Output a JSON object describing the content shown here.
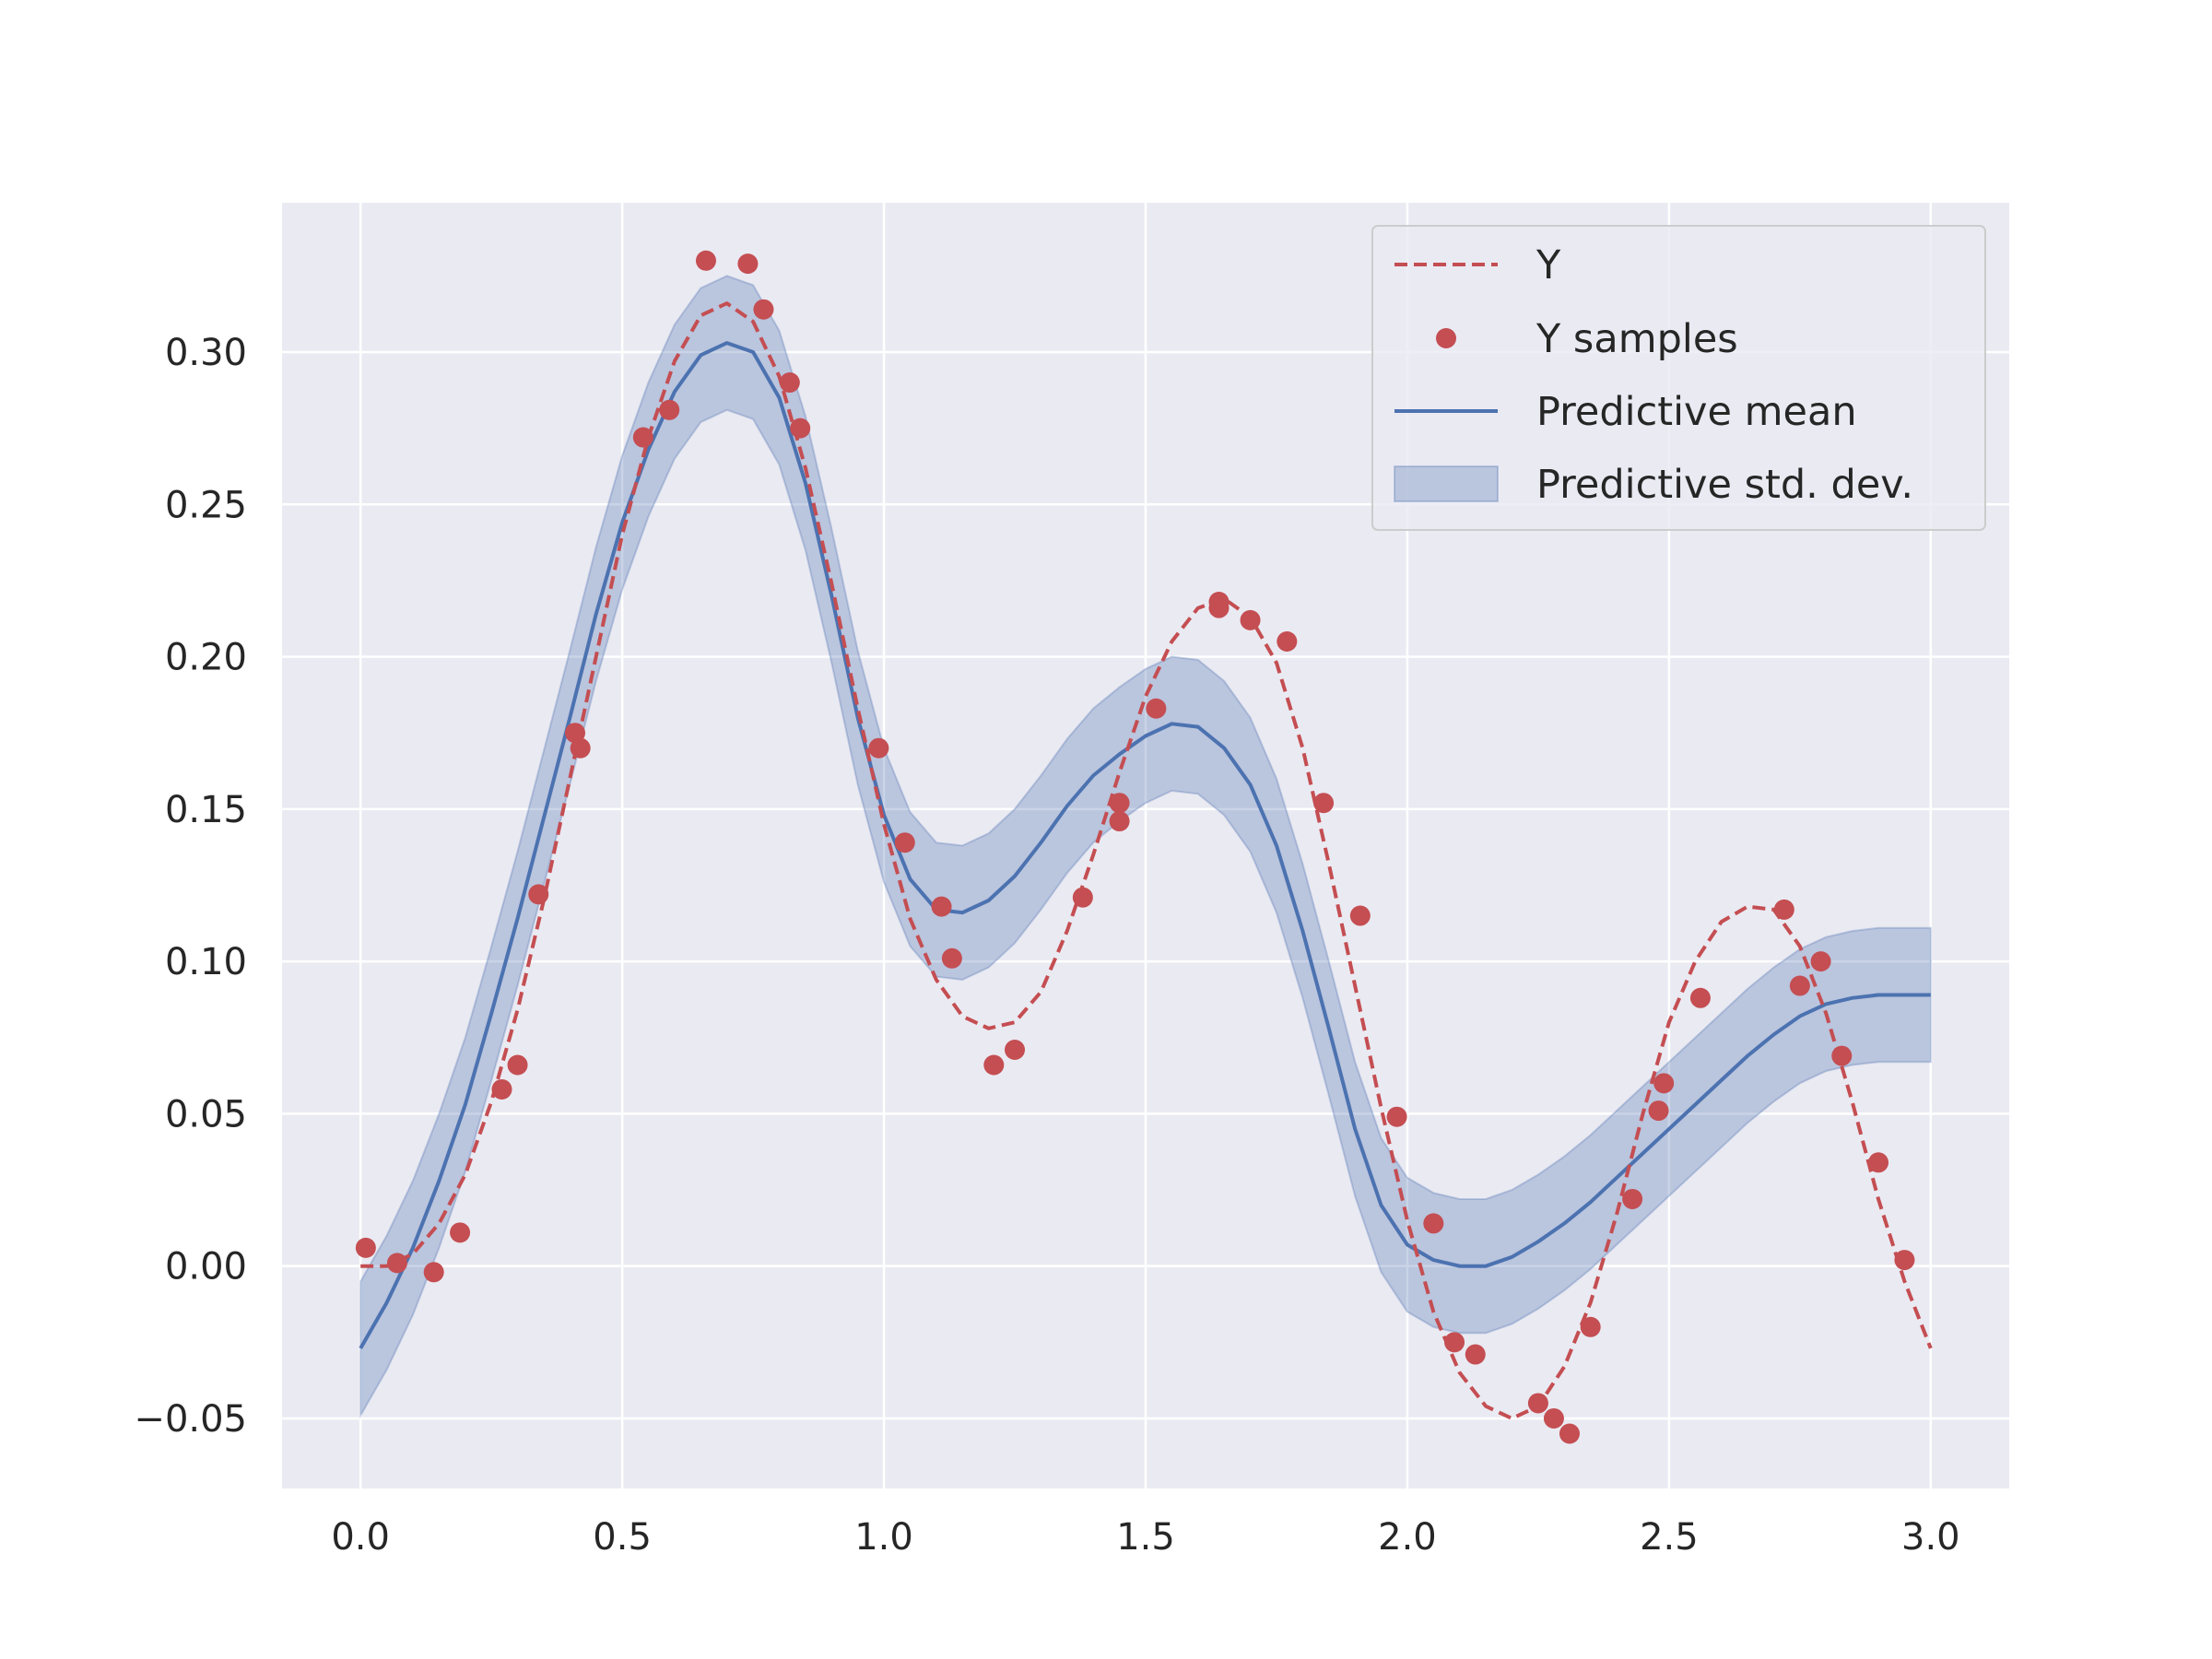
{
  "chart_data": {
    "type": "line",
    "title": "",
    "xlabel": "",
    "ylabel": "",
    "xlim": [
      -0.15,
      3.15
    ],
    "ylim": [
      -0.073,
      0.349
    ],
    "x_ticks": [
      0.0,
      0.5,
      1.0,
      1.5,
      2.0,
      2.5,
      3.0
    ],
    "x_tick_labels": [
      "0.0",
      "0.5",
      "1.0",
      "1.5",
      "2.0",
      "2.5",
      "3.0"
    ],
    "y_ticks": [
      -0.05,
      0.0,
      0.05,
      0.1,
      0.15,
      0.2,
      0.25,
      0.3
    ],
    "y_tick_labels": [
      "−0.05",
      "0.00",
      "0.05",
      "0.10",
      "0.15",
      "0.20",
      "0.25",
      "0.30"
    ],
    "grid": true,
    "background": "#eaeaf2",
    "legend_position": "top-right",
    "series": [
      {
        "name": "Y",
        "style": "dashed-line",
        "color": "#c44e52",
        "x": [
          0.0,
          0.05,
          0.1,
          0.15,
          0.2,
          0.25,
          0.3,
          0.35,
          0.4,
          0.45,
          0.5,
          0.55,
          0.6,
          0.65,
          0.7,
          0.75,
          0.8,
          0.85,
          0.9,
          0.95,
          1.0,
          1.05,
          1.1,
          1.15,
          1.2,
          1.25,
          1.3,
          1.35,
          1.4,
          1.45,
          1.5,
          1.55,
          1.6,
          1.65,
          1.7,
          1.75,
          1.8,
          1.85,
          1.9,
          1.95,
          2.0,
          2.05,
          2.1,
          2.15,
          2.2,
          2.25,
          2.3,
          2.35,
          2.4,
          2.45,
          2.5,
          2.55,
          2.6,
          2.65,
          2.7,
          2.75,
          2.8,
          2.85,
          2.9,
          2.95,
          3.0
        ],
        "values": [
          0.0,
          0.0,
          0.004,
          0.014,
          0.03,
          0.054,
          0.084,
          0.12,
          0.16,
          0.2,
          0.24,
          0.272,
          0.297,
          0.312,
          0.316,
          0.31,
          0.292,
          0.262,
          0.224,
          0.183,
          0.145,
          0.114,
          0.094,
          0.082,
          0.078,
          0.08,
          0.09,
          0.11,
          0.135,
          0.162,
          0.187,
          0.205,
          0.216,
          0.219,
          0.213,
          0.198,
          0.17,
          0.132,
          0.092,
          0.052,
          0.015,
          -0.015,
          -0.035,
          -0.046,
          -0.05,
          -0.046,
          -0.033,
          -0.012,
          0.017,
          0.05,
          0.08,
          0.1,
          0.113,
          0.118,
          0.117,
          0.105,
          0.083,
          0.054,
          0.022,
          -0.005,
          -0.027
        ]
      },
      {
        "name": "Y samples",
        "style": "markers",
        "color": "#c44e52",
        "x": [
          0.01,
          0.07,
          0.14,
          0.19,
          0.27,
          0.3,
          0.34,
          0.41,
          0.42,
          0.54,
          0.59,
          0.66,
          0.74,
          0.77,
          0.82,
          0.84,
          0.99,
          1.04,
          1.11,
          1.13,
          1.21,
          1.25,
          1.38,
          1.45,
          1.45,
          1.52,
          1.64,
          1.64,
          1.7,
          1.77,
          1.84,
          1.91,
          1.98,
          2.05,
          2.09,
          2.13,
          2.25,
          2.28,
          2.31,
          2.35,
          2.43,
          2.48,
          2.49,
          2.56,
          2.72,
          2.75,
          2.79,
          2.83,
          2.9,
          2.95
        ],
        "values": [
          0.006,
          0.001,
          -0.002,
          0.011,
          0.058,
          0.066,
          0.122,
          0.175,
          0.17,
          0.272,
          0.281,
          0.33,
          0.329,
          0.314,
          0.29,
          0.275,
          0.17,
          0.139,
          0.118,
          0.101,
          0.066,
          0.071,
          0.121,
          0.146,
          0.152,
          0.183,
          0.216,
          0.218,
          0.212,
          0.205,
          0.152,
          0.115,
          0.049,
          0.014,
          -0.025,
          -0.029,
          -0.045,
          -0.05,
          -0.055,
          -0.02,
          0.022,
          0.051,
          0.06,
          0.088,
          0.117,
          0.092,
          0.1,
          0.069,
          0.034,
          0.002
        ]
      },
      {
        "name": "Predictive mean",
        "style": "solid-line",
        "color": "#4c72b0",
        "x": [
          0.0,
          0.05,
          0.1,
          0.15,
          0.2,
          0.25,
          0.3,
          0.35,
          0.4,
          0.45,
          0.5,
          0.55,
          0.6,
          0.65,
          0.7,
          0.75,
          0.8,
          0.85,
          0.9,
          0.95,
          1.0,
          1.05,
          1.1,
          1.15,
          1.2,
          1.25,
          1.3,
          1.35,
          1.4,
          1.45,
          1.5,
          1.55,
          1.6,
          1.65,
          1.7,
          1.75,
          1.8,
          1.85,
          1.9,
          1.95,
          2.0,
          2.05,
          2.1,
          2.15,
          2.2,
          2.25,
          2.3,
          2.35,
          2.4,
          2.45,
          2.5,
          2.55,
          2.6,
          2.65,
          2.7,
          2.75,
          2.8,
          2.85,
          2.9,
          2.95,
          3.0
        ],
        "values": [
          -0.027,
          -0.012,
          0.006,
          0.028,
          0.053,
          0.083,
          0.114,
          0.147,
          0.18,
          0.214,
          0.244,
          0.268,
          0.287,
          0.299,
          0.303,
          0.3,
          0.285,
          0.257,
          0.22,
          0.18,
          0.148,
          0.127,
          0.117,
          0.116,
          0.12,
          0.128,
          0.139,
          0.151,
          0.161,
          0.168,
          0.174,
          0.178,
          0.177,
          0.17,
          0.158,
          0.138,
          0.11,
          0.078,
          0.045,
          0.02,
          0.007,
          0.002,
          0.0,
          0.0,
          0.003,
          0.008,
          0.014,
          0.021,
          0.029,
          0.037,
          0.045,
          0.053,
          0.061,
          0.069,
          0.076,
          0.082,
          0.086,
          0.088,
          0.089,
          0.089,
          0.089
        ]
      },
      {
        "name": "Predictive std. dev.",
        "style": "band",
        "color": "#4c72b0",
        "half_width": 0.022
      }
    ]
  }
}
